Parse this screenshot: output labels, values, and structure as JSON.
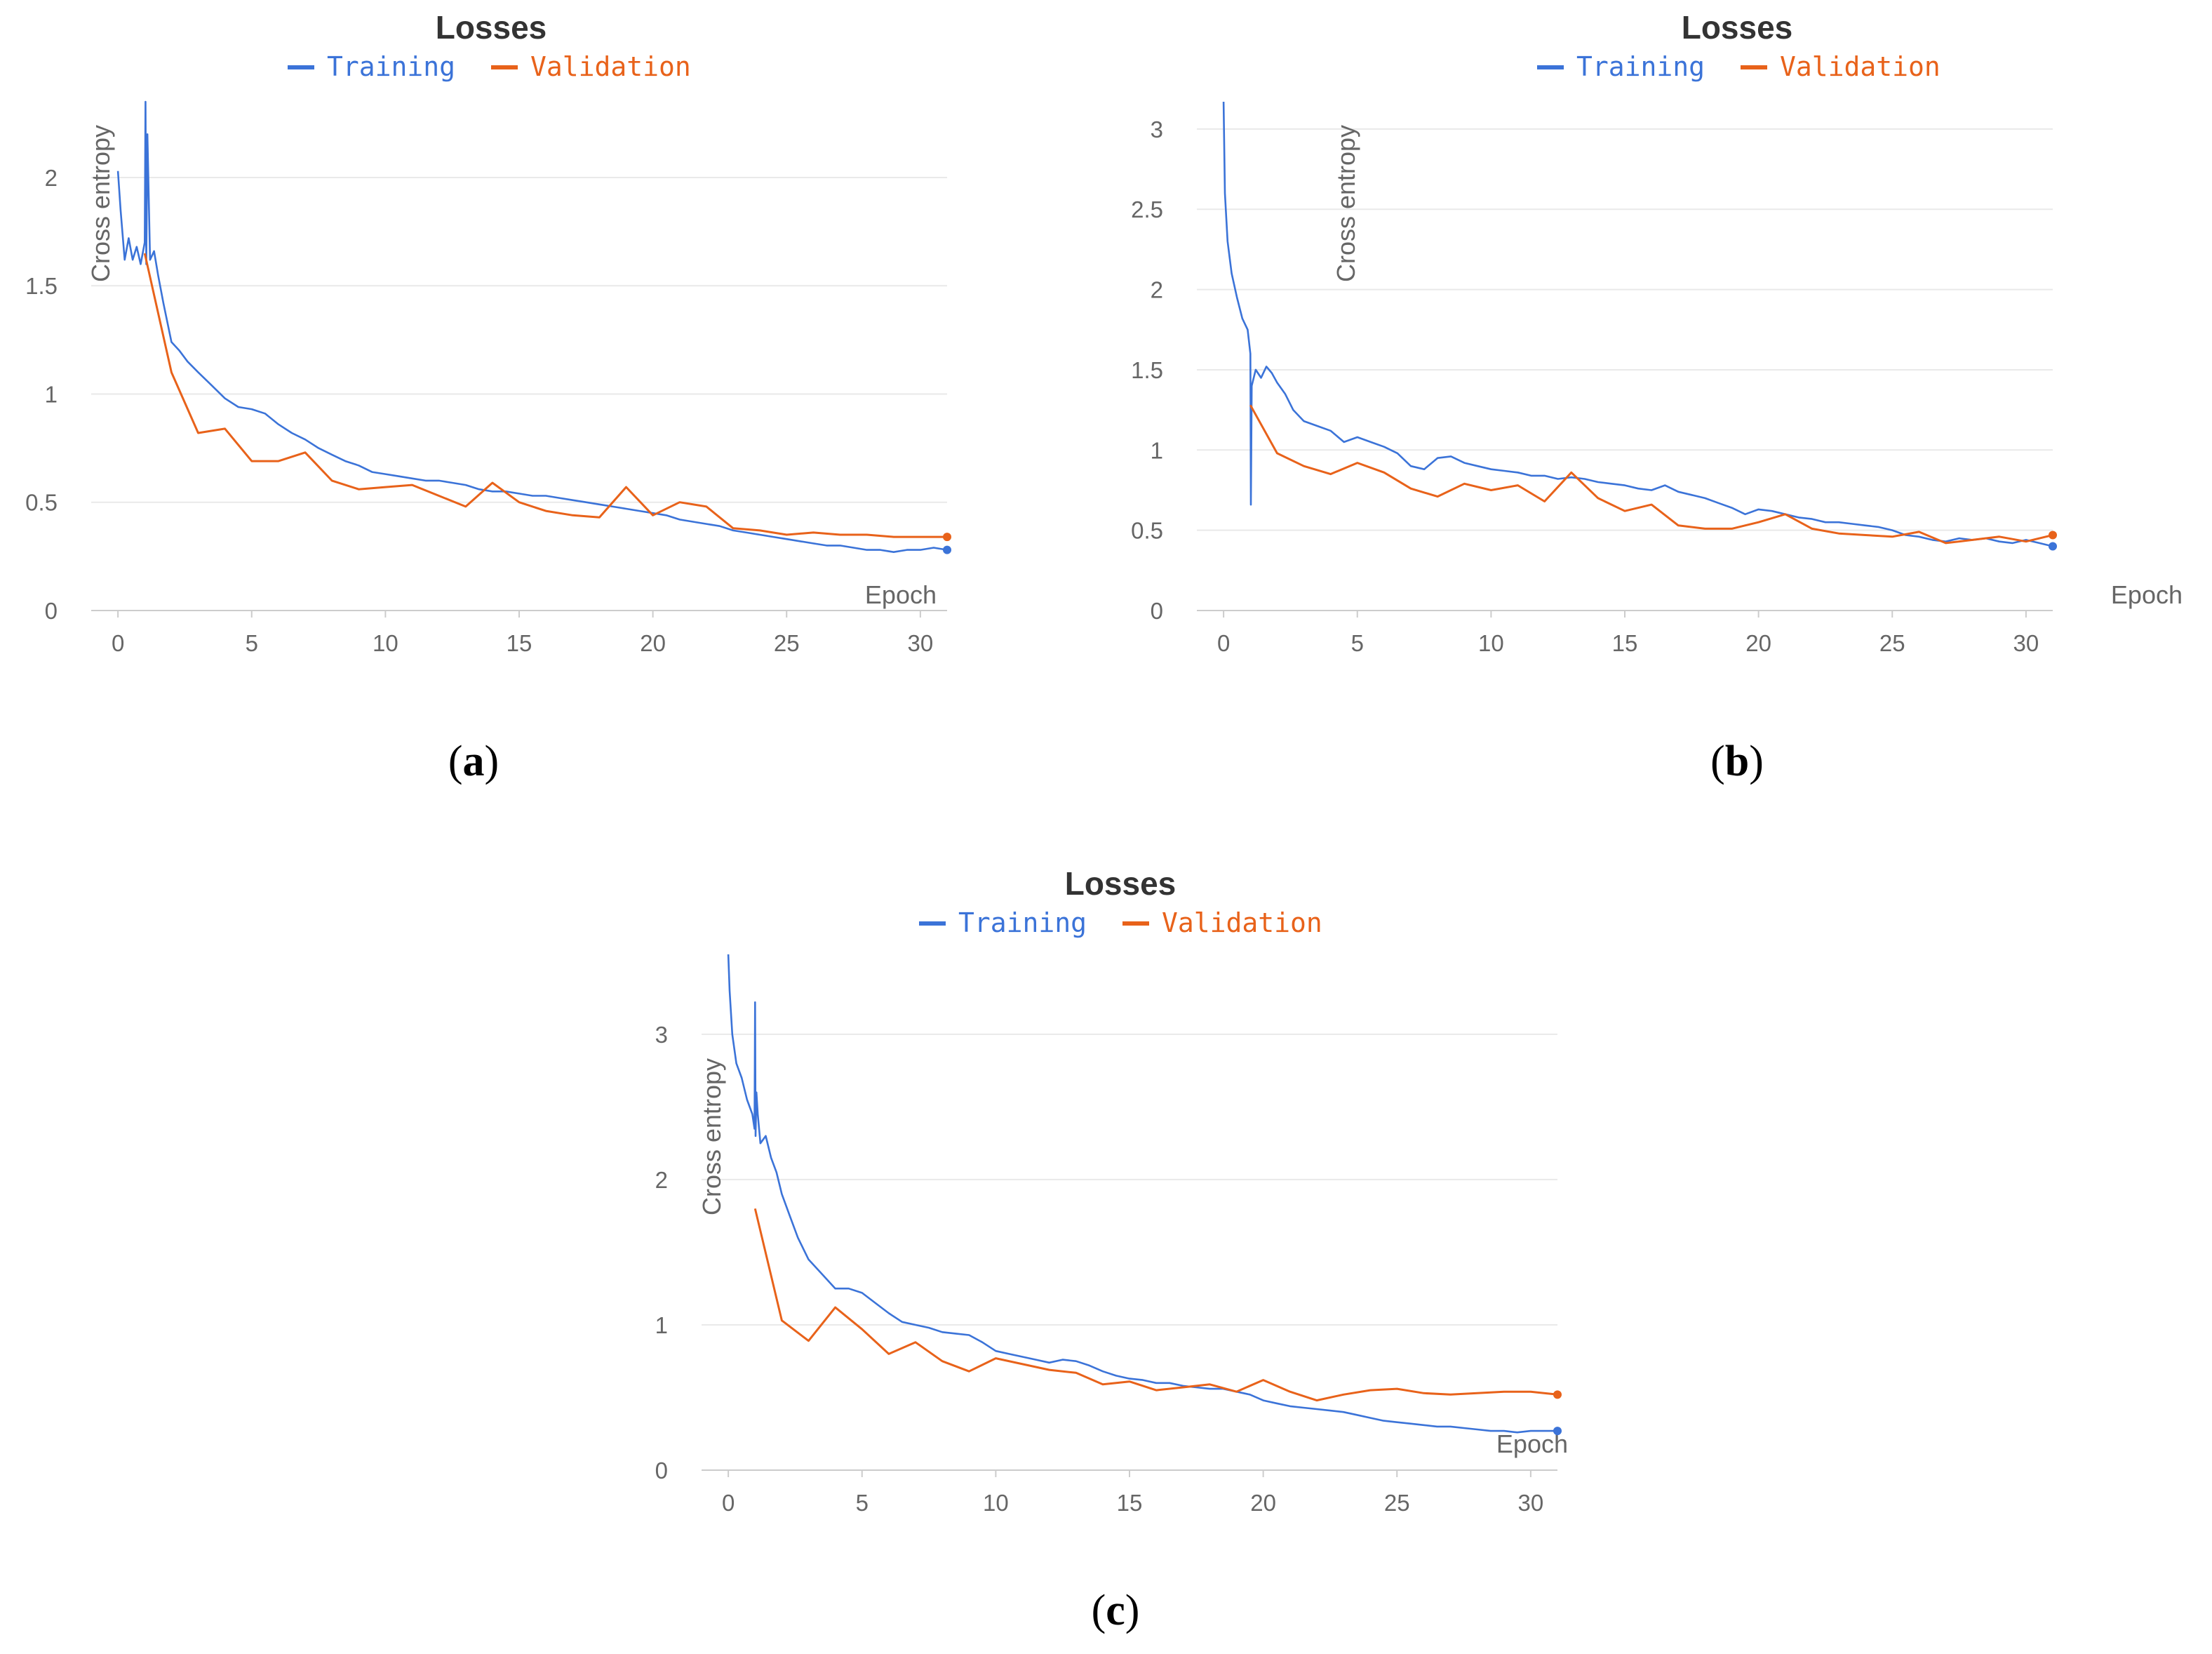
{
  "colors": {
    "training": "#3b73d8",
    "validation": "#e8621a",
    "text": "#666666",
    "title": "#333333"
  },
  "chart_data": [
    {
      "panel": "a",
      "caption": "(a)",
      "type": "line",
      "title": "Losses",
      "legend": [
        "Training",
        "Validation"
      ],
      "xlabel": "Epoch",
      "ylabel": "Cross entropy",
      "xlim": [
        -1,
        31
      ],
      "ylim": [
        0,
        2.35
      ],
      "xticks": [
        "0",
        "5",
        "10",
        "15",
        "20",
        "25",
        "30"
      ],
      "yticks": [
        "0",
        "0.5",
        "1",
        "1.5",
        "2"
      ],
      "series": [
        {
          "name": "Training",
          "x": [
            0,
            0.1,
            0.25,
            0.4,
            0.55,
            0.7,
            0.85,
            1.0,
            1.03,
            1.06,
            1.1,
            1.2,
            1.35,
            1.5,
            1.7,
            2,
            2.3,
            2.6,
            3,
            3.5,
            4,
            4.5,
            5,
            5.5,
            6,
            6.5,
            7,
            7.5,
            8,
            8.5,
            9,
            9.5,
            10,
            10.5,
            11,
            11.5,
            12,
            12.5,
            13,
            13.5,
            14,
            14.5,
            15,
            15.5,
            16,
            16.5,
            17,
            17.5,
            18,
            18.5,
            19,
            19.5,
            20,
            20.5,
            21,
            21.5,
            22,
            22.5,
            23,
            23.5,
            24,
            24.5,
            25,
            25.5,
            26,
            26.5,
            27,
            27.5,
            28,
            28.5,
            29,
            29.5,
            30,
            30.5,
            31
          ],
          "y": [
            2.03,
            1.85,
            1.62,
            1.72,
            1.62,
            1.68,
            1.6,
            1.7,
            2.35,
            1.6,
            2.2,
            1.62,
            1.66,
            1.55,
            1.42,
            1.24,
            1.2,
            1.15,
            1.1,
            1.04,
            0.98,
            0.94,
            0.93,
            0.91,
            0.86,
            0.82,
            0.79,
            0.75,
            0.72,
            0.69,
            0.67,
            0.64,
            0.63,
            0.62,
            0.61,
            0.6,
            0.6,
            0.59,
            0.58,
            0.56,
            0.55,
            0.55,
            0.54,
            0.53,
            0.53,
            0.52,
            0.51,
            0.5,
            0.49,
            0.48,
            0.47,
            0.46,
            0.45,
            0.44,
            0.42,
            0.41,
            0.4,
            0.39,
            0.37,
            0.36,
            0.35,
            0.34,
            0.33,
            0.32,
            0.31,
            0.3,
            0.3,
            0.29,
            0.28,
            0.28,
            0.27,
            0.28,
            0.28,
            0.29,
            0.28
          ]
        },
        {
          "name": "Validation",
          "x": [
            1,
            2,
            3,
            4,
            5,
            6,
            7,
            8,
            9,
            10,
            11,
            12,
            13,
            14,
            15,
            16,
            17,
            18,
            19,
            20,
            21,
            22,
            23,
            24,
            25,
            26,
            27,
            28,
            29,
            30,
            31
          ],
          "y": [
            1.65,
            1.1,
            0.82,
            0.84,
            0.69,
            0.69,
            0.73,
            0.6,
            0.56,
            0.57,
            0.58,
            0.53,
            0.48,
            0.59,
            0.5,
            0.46,
            0.44,
            0.43,
            0.57,
            0.44,
            0.5,
            0.48,
            0.38,
            0.37,
            0.35,
            0.36,
            0.35,
            0.35,
            0.34,
            0.34,
            0.34
          ]
        }
      ]
    },
    {
      "panel": "b",
      "caption": "(b)",
      "type": "line",
      "title": "Losses",
      "legend": [
        "Training",
        "Validation"
      ],
      "xlabel": "Epoch",
      "ylabel": "Cross entropy",
      "xlim": [
        -1,
        31
      ],
      "ylim": [
        0,
        3.17
      ],
      "xticks": [
        "0",
        "5",
        "10",
        "15",
        "20",
        "25",
        "30"
      ],
      "yticks": [
        "0",
        "0.5",
        "1",
        "1.5",
        "2",
        "2.5",
        "3"
      ],
      "series": [
        {
          "name": "Training",
          "x": [
            0,
            0.05,
            0.15,
            0.3,
            0.5,
            0.7,
            0.9,
            1.0,
            1.02,
            1.05,
            1.2,
            1.4,
            1.6,
            1.8,
            2,
            2.3,
            2.6,
            3,
            3.5,
            4,
            4.5,
            5,
            5.5,
            6,
            6.5,
            7,
            7.5,
            8,
            8.5,
            9,
            9.5,
            10,
            10.5,
            11,
            11.5,
            12,
            12.5,
            13,
            13.5,
            14,
            14.5,
            15,
            15.5,
            16,
            16.5,
            17,
            17.5,
            18,
            18.5,
            19,
            19.5,
            20,
            20.5,
            21,
            21.5,
            22,
            22.5,
            23,
            23.5,
            24,
            24.5,
            25,
            25.5,
            26,
            26.5,
            27,
            27.5,
            28,
            28.5,
            29,
            29.5,
            30,
            30.5,
            31
          ],
          "y": [
            3.17,
            2.6,
            2.3,
            2.1,
            1.95,
            1.82,
            1.75,
            1.6,
            0.66,
            1.4,
            1.5,
            1.45,
            1.52,
            1.48,
            1.42,
            1.35,
            1.25,
            1.18,
            1.15,
            1.12,
            1.05,
            1.08,
            1.05,
            1.02,
            0.98,
            0.9,
            0.88,
            0.95,
            0.96,
            0.92,
            0.9,
            0.88,
            0.87,
            0.86,
            0.84,
            0.84,
            0.82,
            0.83,
            0.82,
            0.8,
            0.79,
            0.78,
            0.76,
            0.75,
            0.78,
            0.74,
            0.72,
            0.7,
            0.67,
            0.64,
            0.6,
            0.63,
            0.62,
            0.6,
            0.58,
            0.57,
            0.55,
            0.55,
            0.54,
            0.53,
            0.52,
            0.5,
            0.47,
            0.46,
            0.44,
            0.43,
            0.45,
            0.44,
            0.45,
            0.43,
            0.42,
            0.44,
            0.42,
            0.4
          ]
        },
        {
          "name": "Validation",
          "x": [
            1,
            2,
            3,
            4,
            5,
            6,
            7,
            8,
            9,
            10,
            11,
            12,
            13,
            14,
            15,
            16,
            17,
            18,
            19,
            20,
            21,
            22,
            23,
            24,
            25,
            26,
            27,
            28,
            29,
            30,
            31
          ],
          "y": [
            1.28,
            0.98,
            0.9,
            0.85,
            0.92,
            0.86,
            0.76,
            0.71,
            0.79,
            0.75,
            0.78,
            0.68,
            0.86,
            0.7,
            0.62,
            0.66,
            0.53,
            0.51,
            0.51,
            0.55,
            0.6,
            0.51,
            0.48,
            0.47,
            0.46,
            0.49,
            0.42,
            0.44,
            0.46,
            0.43,
            0.47
          ]
        }
      ]
    },
    {
      "panel": "c",
      "caption": "(c)",
      "type": "line",
      "title": "Losses",
      "legend": [
        "Training",
        "Validation"
      ],
      "xlabel": "Epoch",
      "ylabel": "Cross entropy",
      "xlim": [
        -1,
        31
      ],
      "ylim": [
        0,
        3.55
      ],
      "xticks": [
        "0",
        "5",
        "10",
        "15",
        "20",
        "25",
        "30"
      ],
      "yticks": [
        "0",
        "1",
        "2",
        "3"
      ],
      "series": [
        {
          "name": "Training",
          "x": [
            0,
            0.05,
            0.15,
            0.3,
            0.5,
            0.7,
            0.9,
            0.98,
            1.0,
            1.02,
            1.05,
            1.1,
            1.2,
            1.4,
            1.6,
            1.8,
            2,
            2.3,
            2.6,
            3,
            3.5,
            4,
            4.5,
            5,
            5.5,
            6,
            6.5,
            7,
            7.5,
            8,
            8.5,
            9,
            9.5,
            10,
            10.5,
            11,
            11.5,
            12,
            12.5,
            13,
            13.5,
            14,
            14.5,
            15,
            15.5,
            16,
            16.5,
            17,
            17.5,
            18,
            18.5,
            19,
            19.5,
            20,
            20.5,
            21,
            21.5,
            22,
            22.5,
            23,
            23.5,
            24,
            24.5,
            25,
            25.5,
            26,
            26.5,
            27,
            27.5,
            28,
            28.5,
            29,
            29.5,
            30,
            30.5,
            31
          ],
          "y": [
            3.55,
            3.3,
            3.0,
            2.8,
            2.7,
            2.55,
            2.45,
            2.35,
            3.22,
            2.3,
            2.6,
            2.45,
            2.25,
            2.3,
            2.15,
            2.05,
            1.9,
            1.75,
            1.6,
            1.45,
            1.35,
            1.25,
            1.25,
            1.22,
            1.15,
            1.08,
            1.02,
            1.0,
            0.98,
            0.95,
            0.94,
            0.93,
            0.88,
            0.82,
            0.8,
            0.78,
            0.76,
            0.74,
            0.76,
            0.75,
            0.72,
            0.68,
            0.65,
            0.63,
            0.62,
            0.6,
            0.6,
            0.58,
            0.57,
            0.56,
            0.56,
            0.54,
            0.52,
            0.48,
            0.46,
            0.44,
            0.43,
            0.42,
            0.41,
            0.4,
            0.38,
            0.36,
            0.34,
            0.33,
            0.32,
            0.31,
            0.3,
            0.3,
            0.29,
            0.28,
            0.27,
            0.27,
            0.26,
            0.27,
            0.27,
            0.27
          ]
        },
        {
          "name": "Validation",
          "x": [
            1,
            2,
            3,
            4,
            5,
            6,
            7,
            8,
            9,
            10,
            11,
            12,
            13,
            14,
            15,
            16,
            17,
            18,
            19,
            20,
            21,
            22,
            23,
            24,
            25,
            26,
            27,
            28,
            29,
            30,
            31
          ],
          "y": [
            1.8,
            1.03,
            0.89,
            1.12,
            0.97,
            0.8,
            0.88,
            0.75,
            0.68,
            0.77,
            0.73,
            0.69,
            0.67,
            0.59,
            0.61,
            0.55,
            0.57,
            0.59,
            0.54,
            0.62,
            0.54,
            0.48,
            0.52,
            0.55,
            0.56,
            0.53,
            0.52,
            0.53,
            0.54,
            0.54,
            0.52
          ]
        }
      ]
    }
  ]
}
